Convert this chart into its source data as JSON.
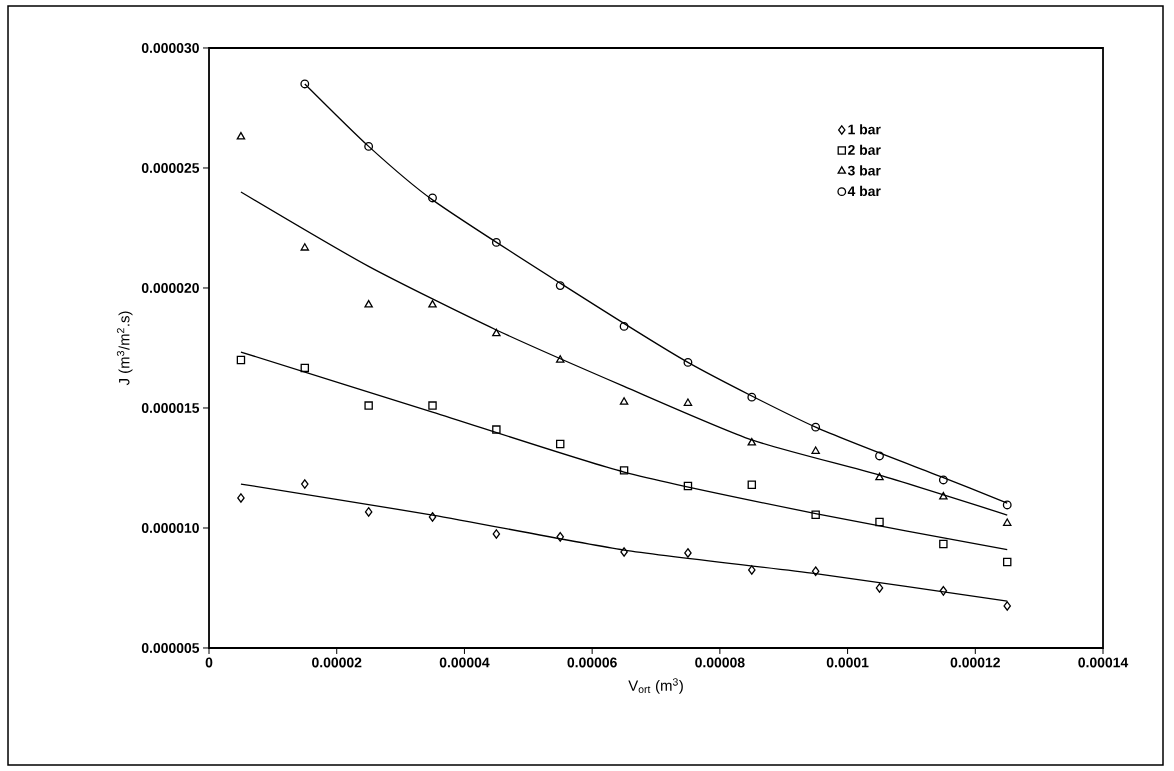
{
  "chart_data": {
    "type": "scatter",
    "xlabel": "V$_{ort}$ (m$^{3}$)",
    "ylabel": "J (m$^{3}$/m$^{2}$.s)",
    "x": [
      5e-06,
      1.5e-05,
      2.5e-05,
      3.5e-05,
      4.5e-05,
      5.5e-05,
      6.5e-05,
      7.5e-05,
      8.5e-05,
      9.5e-05,
      0.000105,
      0.000115,
      0.000125
    ],
    "series": [
      {
        "name": "1 bar",
        "color": "#000000",
        "marker": "diamond",
        "values": [
          1.125e-05,
          1.183e-05,
          1.067e-05,
          1.046e-05,
          9.75e-06,
          9.63e-06,
          9e-06,
          8.96e-06,
          8.25e-06,
          8.2e-06,
          7.5e-06,
          7.38e-06,
          6.75e-06
        ]
      },
      {
        "name": "2 bar",
        "color": "#000000",
        "marker": "square",
        "values": [
          1.7e-05,
          1.667e-05,
          1.51e-05,
          1.51e-05,
          1.41e-05,
          1.35e-05,
          1.24e-05,
          1.175e-05,
          1.18e-05,
          1.055e-05,
          1.025e-05,
          9.33e-06,
          8.58e-06
        ]
      },
      {
        "name": "3 bar",
        "color": "#000000",
        "marker": "triangle",
        "values": [
          2.63e-05,
          2.167e-05,
          1.93e-05,
          1.93e-05,
          1.81e-05,
          1.7e-05,
          1.525e-05,
          1.52e-05,
          1.355e-05,
          1.32e-05,
          1.21e-05,
          1.13e-05,
          1.02e-05
        ]
      },
      {
        "name": "4 bar",
        "color": "#000000",
        "marker": "circle",
        "values": [
          null,
          2.85e-05,
          2.59e-05,
          2.375e-05,
          2.19e-05,
          2.01e-05,
          1.84e-05,
          1.69e-05,
          1.545e-05,
          1.42e-05,
          1.3e-05,
          1.2e-05,
          1.096e-05
        ]
      },
      {
        "type": "line",
        "color": "#000000",
        "marker": "none",
        "x": [
          5e-06,
          3.5e-05,
          6.5e-05,
          9.5e-05,
          0.000125
        ],
        "values": [
          1.183e-05,
          1.054e-05,
          9.08e-06,
          8.1e-06,
          6.95e-06
        ]
      },
      {
        "type": "line",
        "color": "#000000",
        "marker": "none",
        "x": [
          5e-06,
          3.5e-05,
          6.5e-05,
          9.5e-05,
          0.000125
        ],
        "values": [
          1.733e-05,
          1.483e-05,
          1.233e-05,
          1.06e-05,
          9.1e-06
        ]
      },
      {
        "type": "line",
        "color": "#000000",
        "marker": "none",
        "x": [
          5e-06,
          2.5e-05,
          4.5e-05,
          6.5e-05,
          8.5e-05,
          0.000105,
          0.000125
        ],
        "values": [
          2.4e-05,
          2.09e-05,
          1.825e-05,
          1.59e-05,
          1.367e-05,
          1.22e-05,
          1.054e-05
        ]
      },
      {
        "type": "line",
        "color": "#000000",
        "marker": "none",
        "x": [
          1.5e-05,
          2.5e-05,
          3.5e-05,
          5.5e-05,
          7.5e-05,
          9.5e-05,
          0.000115,
          0.000125
        ],
        "values": [
          2.85e-05,
          2.59e-05,
          2.367e-05,
          2.02e-05,
          1.69e-05,
          1.42e-05,
          1.21e-05,
          1.104e-05
        ]
      }
    ],
    "xlim": [
      0,
      0.00014
    ],
    "ylim": [
      5e-06,
      3e-05
    ],
    "xticks": [
      {
        "value": 0,
        "label": "0"
      },
      {
        "value": 2e-05,
        "label": "0.00002"
      },
      {
        "value": 4e-05,
        "label": "0.00004"
      },
      {
        "value": 6e-05,
        "label": "0.00006"
      },
      {
        "value": 8e-05,
        "label": "0.00008"
      },
      {
        "value": 0.0001,
        "label": "0.0001"
      },
      {
        "value": 0.00012,
        "label": "0.00012"
      },
      {
        "value": 0.00014,
        "label": "0.00014"
      }
    ],
    "yticks": [
      {
        "value": 5e-06,
        "label": "0.000005"
      },
      {
        "value": 1e-05,
        "label": "0.000010"
      },
      {
        "value": 1.5e-05,
        "label": "0.000015"
      },
      {
        "value": 2e-05,
        "label": "0.000020"
      },
      {
        "value": 2.5e-05,
        "label": "0.000025"
      },
      {
        "value": 3e-05,
        "label": "0.000030"
      }
    ],
    "legend": "top right",
    "grid": false
  }
}
